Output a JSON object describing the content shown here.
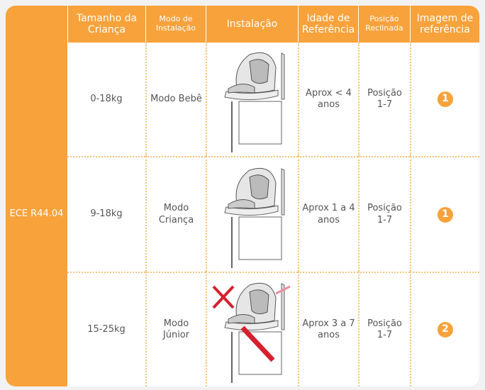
{
  "table": {
    "header": [
      "Tamanho da Criança",
      "Modo de Instalação",
      "Instalação",
      "Idade de Referência",
      "Posição Reclinada",
      "Imagem de referência"
    ],
    "group": "ECE R44.04",
    "rows": [
      {
        "size": "0-18kg",
        "mode": "Modo Bebê",
        "age": "Aprox < 4 anos",
        "recline": "Posição 1-7",
        "ref": 1
      },
      {
        "size": "9-18kg",
        "mode": "Modo Criança",
        "age": "Aprox 1 a 4 anos",
        "recline": "Posição 1-7",
        "ref": 1
      },
      {
        "size": "15-25kg",
        "mode": "Modo Júnior",
        "age": "Aprox 3 a 7 anos",
        "recline": "Posição 1-7",
        "ref": 2
      }
    ]
  }
}
